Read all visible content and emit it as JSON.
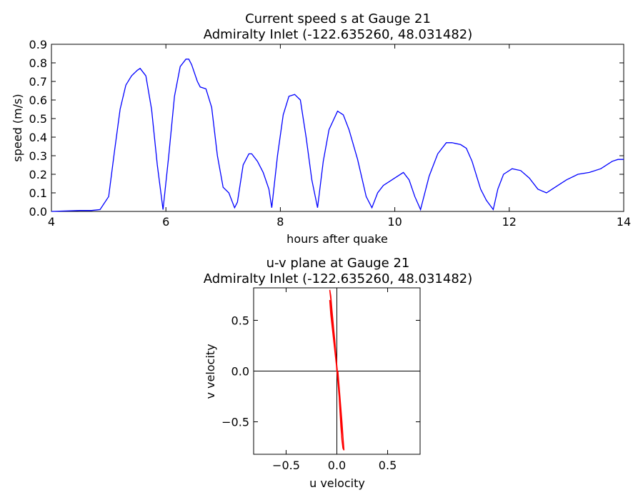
{
  "chart_data": [
    {
      "type": "line",
      "title": "Current speed s at Gauge 21",
      "subtitle": "Admiralty Inlet  (-122.635260, 48.031482)",
      "xlabel": "hours after quake",
      "ylabel": "speed (m/s)",
      "xlim": [
        4,
        14
      ],
      "ylim": [
        0,
        0.9
      ],
      "xticks": [
        "4",
        "6",
        "8",
        "10",
        "12",
        "14"
      ],
      "yticks": [
        "0.0",
        "0.1",
        "0.2",
        "0.3",
        "0.4",
        "0.5",
        "0.6",
        "0.7",
        "0.8",
        "0.9"
      ],
      "grid": false,
      "color": "#0000ff",
      "x": [
        4.0,
        4.5,
        4.7,
        4.85,
        5.0,
        5.1,
        5.2,
        5.3,
        5.4,
        5.5,
        5.55,
        5.65,
        5.75,
        5.85,
        5.95,
        6.05,
        6.15,
        6.25,
        6.35,
        6.4,
        6.45,
        6.55,
        6.6,
        6.7,
        6.8,
        6.9,
        7.0,
        7.1,
        7.2,
        7.25,
        7.35,
        7.45,
        7.5,
        7.6,
        7.7,
        7.8,
        7.85,
        7.95,
        8.05,
        8.15,
        8.25,
        8.35,
        8.45,
        8.55,
        8.65,
        8.75,
        8.85,
        9.0,
        9.1,
        9.2,
        9.35,
        9.5,
        9.6,
        9.7,
        9.8,
        10.0,
        10.15,
        10.25,
        10.35,
        10.45,
        10.6,
        10.75,
        10.9,
        11.0,
        11.15,
        11.25,
        11.35,
        11.5,
        11.6,
        11.72,
        11.8,
        11.9,
        12.05,
        12.2,
        12.35,
        12.5,
        12.65,
        12.8,
        13.0,
        13.2,
        13.4,
        13.6,
        13.8,
        13.9,
        14.0
      ],
      "y": [
        0.0,
        0.005,
        0.005,
        0.01,
        0.08,
        0.32,
        0.55,
        0.68,
        0.73,
        0.76,
        0.77,
        0.73,
        0.55,
        0.25,
        0.01,
        0.3,
        0.62,
        0.78,
        0.82,
        0.82,
        0.79,
        0.7,
        0.67,
        0.66,
        0.56,
        0.3,
        0.13,
        0.1,
        0.02,
        0.05,
        0.25,
        0.31,
        0.31,
        0.27,
        0.21,
        0.12,
        0.02,
        0.3,
        0.52,
        0.62,
        0.63,
        0.6,
        0.4,
        0.17,
        0.02,
        0.27,
        0.44,
        0.54,
        0.52,
        0.44,
        0.28,
        0.08,
        0.02,
        0.1,
        0.14,
        0.18,
        0.21,
        0.17,
        0.08,
        0.01,
        0.19,
        0.31,
        0.37,
        0.37,
        0.36,
        0.34,
        0.27,
        0.12,
        0.06,
        0.01,
        0.12,
        0.2,
        0.23,
        0.22,
        0.18,
        0.12,
        0.1,
        0.13,
        0.17,
        0.2,
        0.21,
        0.23,
        0.27,
        0.28,
        0.28
      ]
    },
    {
      "type": "line",
      "title": "u-v plane at Gauge 21",
      "subtitle": "Admiralty Inlet  (-122.635260, 48.031482)",
      "xlabel": "u velocity",
      "ylabel": "v velocity",
      "xlim": [
        -0.82,
        0.82
      ],
      "ylim": [
        -0.82,
        0.82
      ],
      "xticks": [
        "−0.5",
        "0.0",
        "0.5"
      ],
      "yticks": [
        "0.5",
        "0.0",
        "−0.5"
      ],
      "grid": false,
      "color": "#ff0000",
      "zero_lines": true,
      "x": [
        0.0,
        -0.01,
        -0.03,
        -0.05,
        -0.07,
        -0.06,
        -0.04,
        -0.02,
        0.0,
        0.01,
        0.02,
        0.03,
        0.04,
        0.05,
        0.06,
        0.07,
        0.06,
        0.04,
        0.02,
        0.0,
        -0.02,
        -0.04,
        -0.06,
        -0.07,
        -0.05,
        -0.03,
        -0.01,
        0.01,
        0.03,
        0.05,
        0.065,
        0.05,
        0.03,
        0.01
      ],
      "y": [
        0.0,
        0.15,
        0.4,
        0.62,
        0.8,
        0.74,
        0.5,
        0.3,
        0.05,
        -0.05,
        -0.2,
        -0.38,
        -0.55,
        -0.68,
        -0.76,
        -0.78,
        -0.65,
        -0.45,
        -0.22,
        0.02,
        0.2,
        0.38,
        0.56,
        0.7,
        0.55,
        0.35,
        0.15,
        -0.1,
        -0.32,
        -0.52,
        -0.72,
        -0.5,
        -0.25,
        0.0
      ]
    }
  ]
}
